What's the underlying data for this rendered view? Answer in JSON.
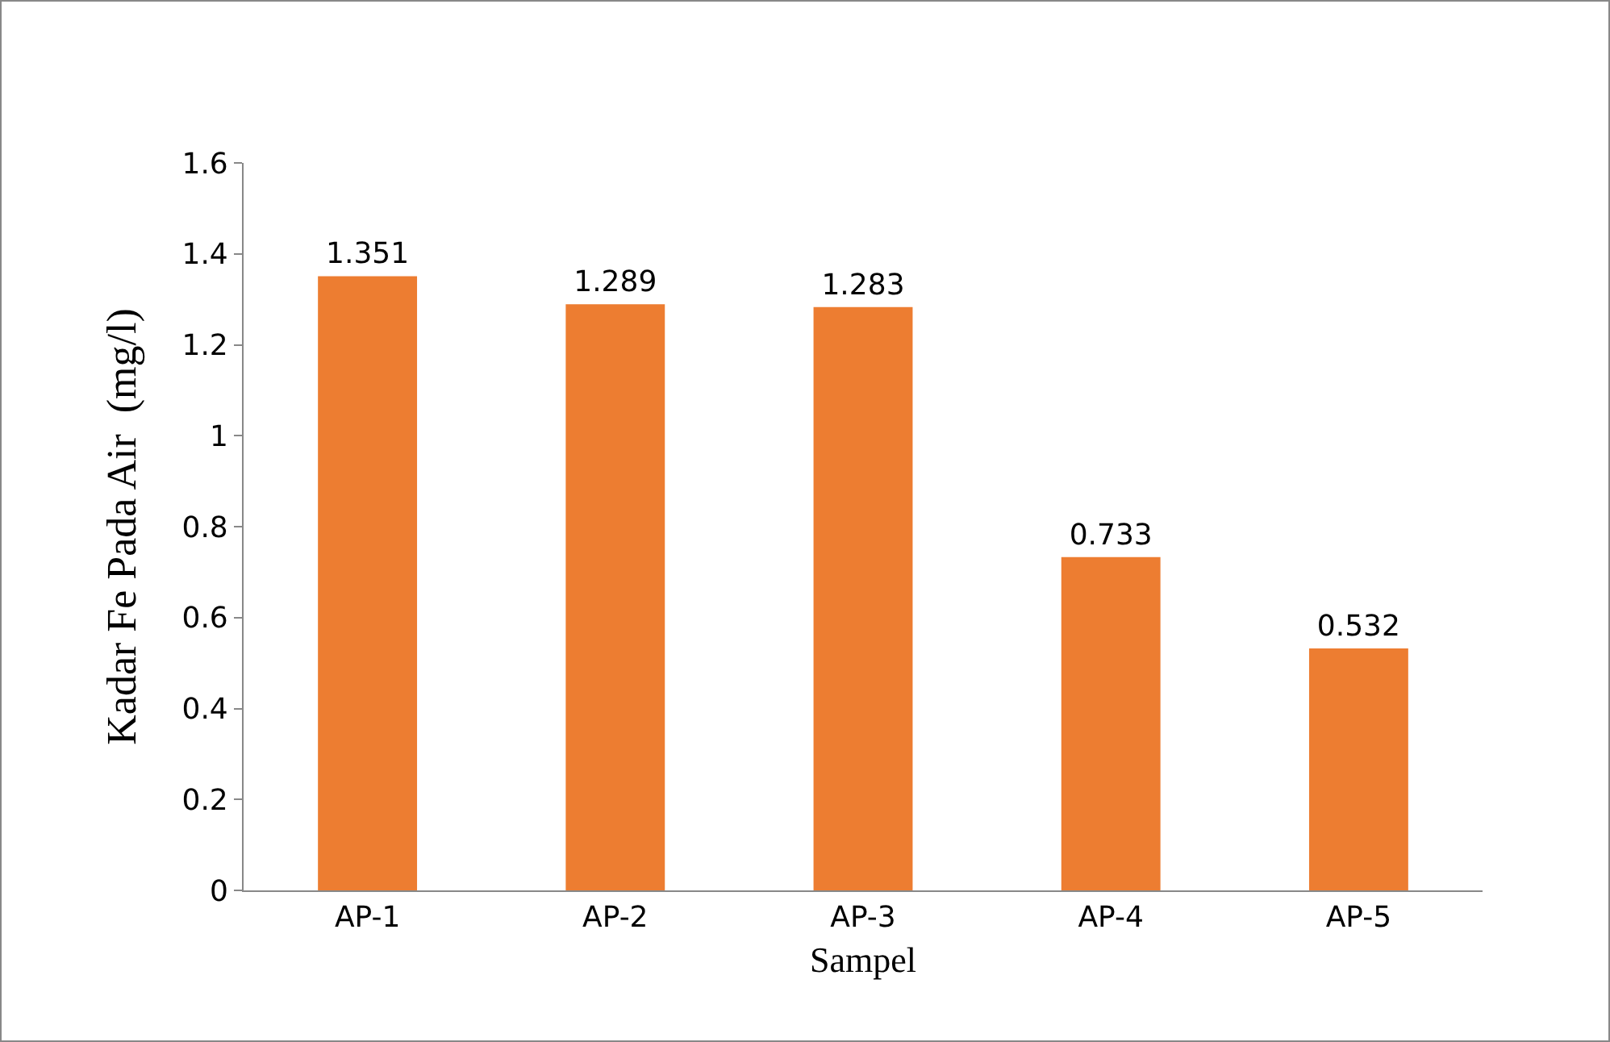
{
  "chart_data": {
    "type": "bar",
    "xlabel": "Sampel",
    "ylabel": "Kadar Fe Pada Air  (mg/l)",
    "categories": [
      "AP-1",
      "AP-2",
      "AP-3",
      "AP-4",
      "AP-5"
    ],
    "values": [
      1.351,
      1.289,
      1.283,
      0.733,
      0.532
    ],
    "color": "#ed7d31",
    "ylim": [
      0,
      1.6
    ],
    "yticks": [
      0,
      0.2,
      0.4,
      0.6,
      0.8,
      1,
      1.2,
      1.4,
      1.6
    ],
    "grid": false,
    "data_labels": true,
    "legend": false
  }
}
